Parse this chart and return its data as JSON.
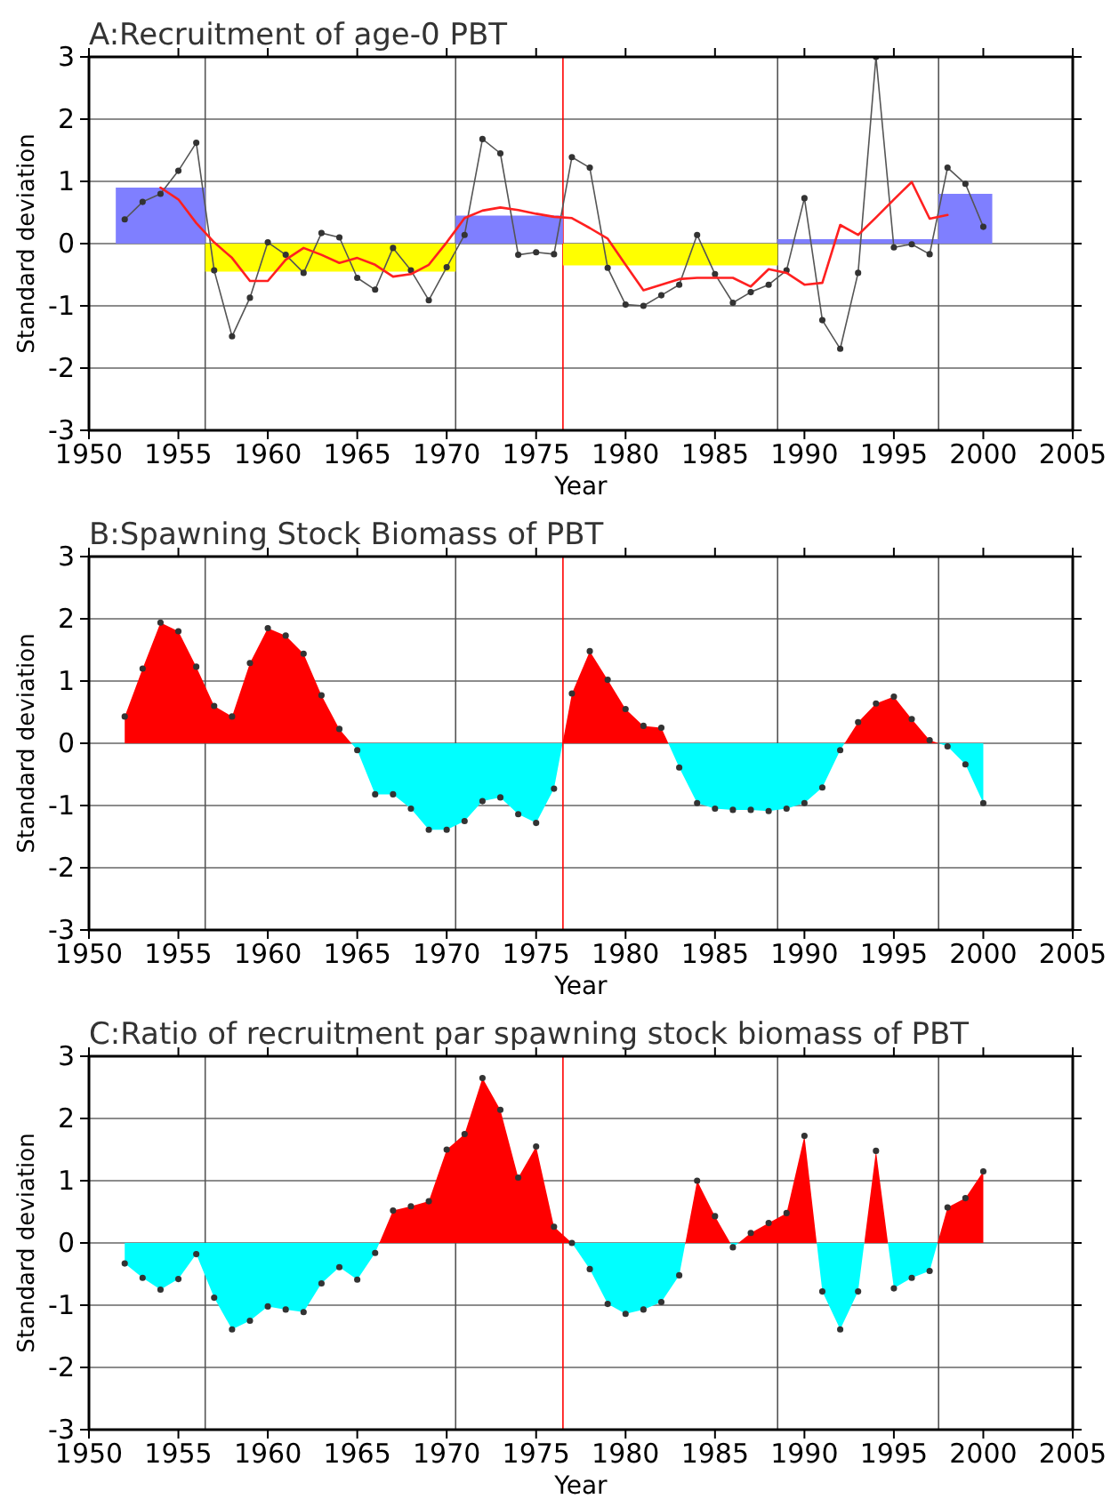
{
  "chart_data": [
    {
      "type": "line",
      "title": "A:Recruitment of age-0 PBT",
      "xlabel": "Year",
      "ylabel": "Standard deviation",
      "xlim": [
        1950,
        2005
      ],
      "xticks": [
        1950,
        1955,
        1960,
        1965,
        1970,
        1975,
        1980,
        1985,
        1990,
        1995,
        2000,
        2005
      ],
      "ylim": [
        -3,
        3
      ],
      "yticks": [
        -3,
        -2,
        -1,
        0,
        1,
        2,
        3
      ],
      "grid": "y",
      "line_style": "solid",
      "ref_lines": [
        {
          "axis": "x",
          "value": 1956.5,
          "color": "#555555"
        },
        {
          "axis": "x",
          "value": 1970.5,
          "color": "#555555"
        },
        {
          "axis": "x",
          "value": 1976.5,
          "color": "#ff0000"
        },
        {
          "axis": "x",
          "value": 1988.5,
          "color": "#555555"
        },
        {
          "axis": "x",
          "value": 1997.5,
          "color": "#555555"
        }
      ],
      "series": [
        {
          "type": "area",
          "marker": "none",
          "color": "#7f7fff",
          "x": [
            1951.5,
            1956.5
          ],
          "values": [
            0.9,
            0.9
          ]
        },
        {
          "type": "area",
          "marker": "none",
          "color": "#ffff00",
          "x": [
            1956.5,
            1970.5
          ],
          "values": [
            -0.45,
            -0.45
          ]
        },
        {
          "type": "area",
          "marker": "none",
          "color": "#7f7fff",
          "x": [
            1970.5,
            1976.5
          ],
          "values": [
            0.45,
            0.45
          ]
        },
        {
          "type": "area",
          "marker": "none",
          "color": "#ffff00",
          "x": [
            1976.5,
            1988.5
          ],
          "values": [
            -0.35,
            -0.35
          ]
        },
        {
          "type": "area",
          "marker": "none",
          "color": "#7f7fff",
          "x": [
            1988.5,
            1997.5
          ],
          "values": [
            0.07,
            0.07
          ]
        },
        {
          "type": "area",
          "marker": "none",
          "color": "#7f7fff",
          "x": [
            1997.5,
            2000.5
          ],
          "values": [
            0.8,
            0.8
          ]
        },
        {
          "color": "#555555",
          "marker": "circle",
          "x": [
            1952,
            1953,
            1954,
            1955,
            1956,
            1957,
            1958,
            1959,
            1960,
            1961,
            1962,
            1963,
            1964,
            1965,
            1966,
            1967,
            1968,
            1969,
            1970,
            1971,
            1972,
            1973,
            1974,
            1975,
            1976,
            1977,
            1978,
            1979,
            1980,
            1981,
            1982,
            1983,
            1984,
            1985,
            1986,
            1987,
            1988,
            1989,
            1990,
            1991,
            1992,
            1993,
            1994,
            1995,
            1996,
            1997,
            1998,
            1999,
            2000
          ],
          "values": [
            0.39,
            0.67,
            0.8,
            1.17,
            1.62,
            -0.43,
            -1.49,
            -0.87,
            0.02,
            -0.18,
            -0.47,
            0.17,
            0.1,
            -0.55,
            -0.74,
            -0.07,
            -0.43,
            -0.91,
            -0.38,
            0.14,
            1.68,
            1.45,
            -0.18,
            -0.14,
            -0.17,
            1.39,
            1.22,
            -0.39,
            -0.98,
            -1.0,
            -0.83,
            -0.66,
            0.14,
            -0.49,
            -0.95,
            -0.78,
            -0.66,
            -0.43,
            0.73,
            -1.23,
            -1.69,
            -0.47,
            3.0,
            -0.06,
            -0.01,
            -0.17,
            1.22,
            0.96,
            0.27
          ]
        },
        {
          "color": "#ff2020",
          "marker": "none",
          "x": [
            1954,
            1955,
            1956,
            1957,
            1958,
            1959,
            1960,
            1961,
            1962,
            1963,
            1964,
            1965,
            1966,
            1967,
            1968,
            1969,
            1970,
            1971,
            1972,
            1973,
            1974,
            1975,
            1976,
            1977,
            1978,
            1979,
            1980,
            1981,
            1982,
            1983,
            1984,
            1985,
            1986,
            1987,
            1988,
            1989,
            1990,
            1991,
            1992,
            1993,
            1994,
            1995,
            1996,
            1997,
            1998
          ],
          "values": [
            0.9,
            0.71,
            0.33,
            0.02,
            -0.23,
            -0.6,
            -0.6,
            -0.26,
            -0.07,
            -0.18,
            -0.31,
            -0.23,
            -0.34,
            -0.53,
            -0.49,
            -0.34,
            0.02,
            0.41,
            0.53,
            0.58,
            0.54,
            0.48,
            0.43,
            0.41,
            0.25,
            0.08,
            -0.34,
            -0.75,
            -0.66,
            -0.57,
            -0.55,
            -0.55,
            -0.55,
            -0.69,
            -0.41,
            -0.47,
            -0.66,
            -0.63,
            0.3,
            0.14,
            0.42,
            0.71,
            0.99,
            0.4,
            0.46
          ]
        }
      ]
    },
    {
      "type": "area",
      "title": "B:Spawning Stock Biomass of PBT",
      "xlabel": "Year",
      "ylabel": "Standard deviation",
      "xlim": [
        1950,
        2005
      ],
      "xticks": [
        1950,
        1955,
        1960,
        1965,
        1970,
        1975,
        1980,
        1985,
        1990,
        1995,
        2000,
        2005
      ],
      "ylim": [
        -3,
        3
      ],
      "yticks": [
        -3,
        -2,
        -1,
        0,
        1,
        2,
        3
      ],
      "grid": "y",
      "marker": "circle",
      "ref_lines": [
        {
          "axis": "x",
          "value": 1956.5,
          "color": "#555555"
        },
        {
          "axis": "x",
          "value": 1970.5,
          "color": "#555555"
        },
        {
          "axis": "x",
          "value": 1976.5,
          "color": "#ff0000"
        },
        {
          "axis": "x",
          "value": 1988.5,
          "color": "#555555"
        },
        {
          "axis": "x",
          "value": 1997.5,
          "color": "#555555"
        }
      ],
      "series": [
        {
          "x": [
            1952,
            1953,
            1954,
            1955,
            1956,
            1957,
            1958,
            1959,
            1960,
            1961,
            1962,
            1963,
            1964,
            1965,
            1966,
            1967,
            1968,
            1969,
            1970,
            1971,
            1972,
            1973,
            1974,
            1975,
            1976,
            1977,
            1978,
            1979,
            1980,
            1981,
            1982,
            1983,
            1984,
            1985,
            1986,
            1987,
            1988,
            1989,
            1990,
            1991,
            1992,
            1993,
            1994,
            1995,
            1996,
            1997,
            1998,
            1999,
            2000
          ],
          "values": [
            0.43,
            1.2,
            1.94,
            1.8,
            1.23,
            0.6,
            0.43,
            1.29,
            1.85,
            1.73,
            1.44,
            0.77,
            0.23,
            -0.11,
            -0.82,
            -0.82,
            -1.05,
            -1.39,
            -1.39,
            -1.25,
            -0.93,
            -0.87,
            -1.14,
            -1.28,
            -0.73,
            0.8,
            1.48,
            1.02,
            0.55,
            0.28,
            0.25,
            -0.39,
            -0.96,
            -1.05,
            -1.07,
            -1.07,
            -1.09,
            -1.05,
            -0.96,
            -0.71,
            -0.11,
            0.34,
            0.64,
            0.75,
            0.39,
            0.05,
            -0.05,
            -0.34,
            -0.96
          ],
          "colors": [
            "#ff0000",
            "#ff0000",
            "#ff0000",
            "#ff0000",
            "#ff0000",
            "#ff0000",
            "#ff0000",
            "#ff0000",
            "#ff0000",
            "#ff0000",
            "#ff0000",
            "#ff0000",
            "#ff0000",
            "#00ffff",
            "#00ffff",
            "#00ffff",
            "#00ffff",
            "#00ffff",
            "#00ffff",
            "#00ffff",
            "#00ffff",
            "#00ffff",
            "#00ffff",
            "#00ffff",
            "#00ffff",
            "#ff0000",
            "#ff0000",
            "#ff0000",
            "#ff0000",
            "#ff0000",
            "#ff0000",
            "#00ffff",
            "#00ffff",
            "#00ffff",
            "#00ffff",
            "#00ffff",
            "#00ffff",
            "#00ffff",
            "#00ffff",
            "#00ffff",
            "#00ffff",
            "#ff0000",
            "#ff0000",
            "#ff0000",
            "#ff0000",
            "#ff0000",
            "#00ffff",
            "#00ffff",
            "#00ffff"
          ]
        }
      ]
    },
    {
      "type": "area",
      "title": "C:Ratio of recruitment par spawning stock biomass of PBT",
      "xlabel": "Year",
      "ylabel": "Standard deviation",
      "xlim": [
        1950,
        2005
      ],
      "xticks": [
        1950,
        1955,
        1960,
        1965,
        1970,
        1975,
        1980,
        1985,
        1990,
        1995,
        2000,
        2005
      ],
      "ylim": [
        -3,
        3
      ],
      "yticks": [
        -3,
        -2,
        -1,
        0,
        1,
        2,
        3
      ],
      "grid": "y",
      "marker": "circle",
      "ref_lines": [
        {
          "axis": "x",
          "value": 1956.5,
          "color": "#555555"
        },
        {
          "axis": "x",
          "value": 1970.5,
          "color": "#555555"
        },
        {
          "axis": "x",
          "value": 1976.5,
          "color": "#ff0000"
        },
        {
          "axis": "x",
          "value": 1988.5,
          "color": "#555555"
        },
        {
          "axis": "x",
          "value": 1997.5,
          "color": "#555555"
        }
      ],
      "series": [
        {
          "x": [
            1952,
            1953,
            1954,
            1955,
            1956,
            1957,
            1958,
            1959,
            1960,
            1961,
            1962,
            1963,
            1964,
            1965,
            1966,
            1967,
            1968,
            1969,
            1970,
            1971,
            1972,
            1973,
            1974,
            1975,
            1976,
            1977,
            1978,
            1979,
            1980,
            1981,
            1982,
            1983,
            1984,
            1985,
            1986,
            1987,
            1988,
            1989,
            1990,
            1991,
            1992,
            1993,
            1994,
            1995,
            1996,
            1997,
            1998,
            1999,
            2000
          ],
          "values": [
            -0.33,
            -0.56,
            -0.75,
            -0.58,
            -0.18,
            -0.88,
            -1.39,
            -1.25,
            -1.02,
            -1.07,
            -1.11,
            -0.65,
            -0.39,
            -0.59,
            -0.16,
            0.52,
            0.59,
            0.67,
            1.5,
            1.75,
            2.65,
            2.14,
            1.05,
            1.55,
            0.26,
            0.0,
            -0.42,
            -0.98,
            -1.14,
            -1.07,
            -0.95,
            -0.52,
            1.0,
            0.43,
            -0.07,
            0.16,
            0.32,
            0.48,
            1.72,
            -0.78,
            -1.39,
            -0.78,
            1.48,
            -0.73,
            -0.56,
            -0.45,
            0.57,
            0.72,
            1.15
          ],
          "colors": [
            "#00ffff",
            "#00ffff",
            "#00ffff",
            "#00ffff",
            "#00ffff",
            "#00ffff",
            "#00ffff",
            "#00ffff",
            "#00ffff",
            "#00ffff",
            "#00ffff",
            "#00ffff",
            "#00ffff",
            "#00ffff",
            "#00ffff",
            "#ff0000",
            "#ff0000",
            "#ff0000",
            "#ff0000",
            "#ff0000",
            "#ff0000",
            "#ff0000",
            "#ff0000",
            "#ff0000",
            "#ff0000",
            "#ff0000",
            "#00ffff",
            "#00ffff",
            "#00ffff",
            "#00ffff",
            "#00ffff",
            "#00ffff",
            "#ff0000",
            "#ff0000",
            "#00ffff",
            "#ff0000",
            "#ff0000",
            "#ff0000",
            "#ff0000",
            "#00ffff",
            "#00ffff",
            "#00ffff",
            "#ff0000",
            "#00ffff",
            "#00ffff",
            "#00ffff",
            "#ff0000",
            "#ff0000",
            "#ff0000"
          ]
        }
      ]
    }
  ]
}
